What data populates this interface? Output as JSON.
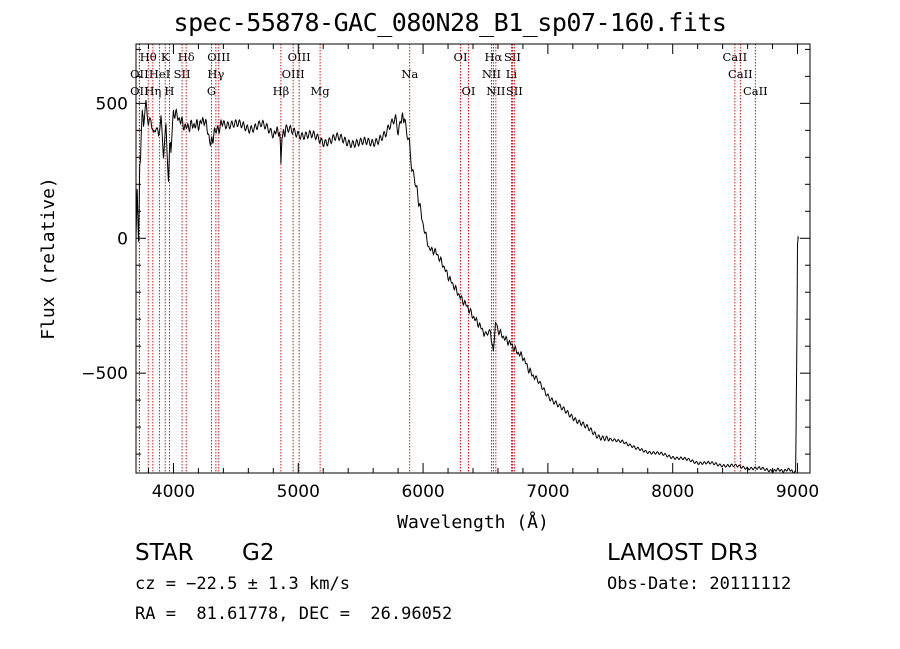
{
  "chart_data": {
    "type": "line",
    "title": "spec-55878-GAC_080N28_B1_sp07-160.fits",
    "xlabel": "Wavelength (Å)",
    "ylabel": "Flux (relative)",
    "xlim": [
      3700,
      9100
    ],
    "ylim": [
      -870,
      720
    ],
    "x_ticks": [
      4000,
      5000,
      6000,
      7000,
      8000,
      9000
    ],
    "y_ticks": [
      -500,
      0,
      500
    ],
    "x_tick_labels": [
      "4000",
      "5000",
      "6000",
      "7000",
      "8000",
      "9000"
    ],
    "y_tick_labels": [
      "−500",
      "0",
      "500"
    ],
    "series": [
      {
        "name": "flux",
        "x": [
          3700,
          3710,
          3720,
          3730,
          3740,
          3750,
          3760,
          3780,
          3800,
          3820,
          3840,
          3860,
          3880,
          3900,
          3920,
          3940,
          3960,
          3970,
          3980,
          4000,
          4050,
          4100,
          4150,
          4200,
          4250,
          4300,
          4330,
          4350,
          4400,
          4500,
          4600,
          4700,
          4800,
          4850,
          4861,
          4870,
          4900,
          5000,
          5100,
          5200,
          5300,
          5400,
          5500,
          5600,
          5700,
          5780,
          5800,
          5820,
          5850,
          5870,
          5890,
          5910,
          5950,
          6000,
          6050,
          6100,
          6150,
          6200,
          6250,
          6300,
          6350,
          6400,
          6450,
          6500,
          6540,
          6563,
          6580,
          6600,
          6650,
          6700,
          6750,
          6800,
          6850,
          6900,
          7000,
          7100,
          7200,
          7300,
          7400,
          7500,
          7600,
          7700,
          7800,
          7900,
          8000,
          8200,
          8400,
          8600,
          8800,
          8950,
          8985,
          8990,
          8995,
          9000,
          9005,
          9010
        ],
        "y": [
          0,
          180,
          -30,
          250,
          350,
          480,
          420,
          500,
          430,
          450,
          390,
          420,
          380,
          440,
          300,
          410,
          200,
          360,
          330,
          470,
          440,
          410,
          420,
          420,
          440,
          350,
          390,
          400,
          430,
          420,
          410,
          420,
          390,
          400,
          280,
          380,
          400,
          390,
          380,
          360,
          370,
          360,
          350,
          360,
          380,
          450,
          400,
          440,
          450,
          390,
          350,
          250,
          180,
          50,
          -40,
          -50,
          -90,
          -140,
          -180,
          -220,
          -250,
          -290,
          -320,
          -360,
          -350,
          -420,
          -300,
          -340,
          -370,
          -390,
          -420,
          -440,
          -490,
          -520,
          -580,
          -630,
          -660,
          -700,
          -730,
          -750,
          -750,
          -780,
          -790,
          -800,
          -810,
          -830,
          -840,
          -850,
          -860,
          -860,
          -870,
          -600,
          -380,
          -20,
          0,
          0
        ]
      }
    ],
    "spectral_lines": [
      {
        "name": "Hθ",
        "wavelength": 3798,
        "row": 0
      },
      {
        "name": "OII",
        "wavelength": 3727,
        "row": 1
      },
      {
        "name": "OII",
        "wavelength": 3727,
        "row": 2
      },
      {
        "name": "K",
        "wavelength": 3934,
        "row": 0
      },
      {
        "name": "HeI",
        "wavelength": 3889,
        "row": 1
      },
      {
        "name": "Hη",
        "wavelength": 3835,
        "row": 2
      },
      {
        "name": "H",
        "wavelength": 3968,
        "row": 2
      },
      {
        "name": "Hδ",
        "wavelength": 4102,
        "row": 0
      },
      {
        "name": "SII",
        "wavelength": 4069,
        "row": 1
      },
      {
        "name": "OIII",
        "wavelength": 4363,
        "row": 0
      },
      {
        "name": "Hγ",
        "wavelength": 4340,
        "row": 1
      },
      {
        "name": "G",
        "wavelength": 4305,
        "row": 2
      },
      {
        "name": "Hβ",
        "wavelength": 4861,
        "row": 2
      },
      {
        "name": "OIII",
        "wavelength": 5007,
        "row": 0
      },
      {
        "name": "OIII",
        "wavelength": 4959,
        "row": 1
      },
      {
        "name": "Mg",
        "wavelength": 5175,
        "row": 2
      },
      {
        "name": "Na",
        "wavelength": 5893,
        "row": 1
      },
      {
        "name": "OI",
        "wavelength": 6300,
        "row": 0
      },
      {
        "name": "OI",
        "wavelength": 6364,
        "row": 2
      },
      {
        "name": "Hα",
        "wavelength": 6563,
        "row": 0
      },
      {
        "name": "NII",
        "wavelength": 6548,
        "row": 1
      },
      {
        "name": "NII",
        "wavelength": 6583,
        "row": 2
      },
      {
        "name": "SII",
        "wavelength": 6716,
        "row": 0
      },
      {
        "name": "Li",
        "wavelength": 6708,
        "row": 1
      },
      {
        "name": "SII",
        "wavelength": 6731,
        "row": 2
      },
      {
        "name": "CaII",
        "wavelength": 8498,
        "row": 0
      },
      {
        "name": "CaII",
        "wavelength": 8542,
        "row": 1
      },
      {
        "name": "CaII",
        "wavelength": 8662,
        "row": 2
      }
    ]
  },
  "info": {
    "class": "STAR",
    "subclass": "G2",
    "survey": "LAMOST DR3",
    "cz": "cz = −22.5 ± 1.3 km/s",
    "obs_date": "Obs-Date: 20111112",
    "coords": "RA =  81.61778, DEC =  26.96052"
  },
  "colors": {
    "line_marker": "#cc0000",
    "spectrum": "#000000"
  }
}
